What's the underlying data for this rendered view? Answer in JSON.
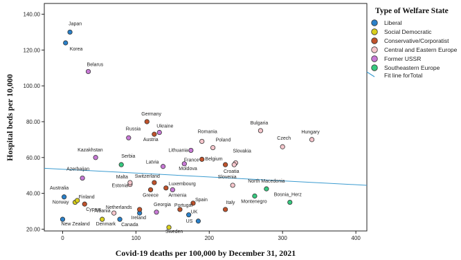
{
  "chart_data": {
    "type": "scatter",
    "xlabel": "Covid-19 deaths per 100,000 by December 31, 2021",
    "ylabel": "Hospital beds per 10,000",
    "xlim": [
      -25,
      415
    ],
    "ylim": [
      19,
      146
    ],
    "x_ticks": [
      0,
      100,
      200,
      300,
      400
    ],
    "y_ticks": [
      20,
      40,
      60,
      80,
      100,
      120,
      140
    ],
    "y_tick_labels": [
      "20.00",
      "40.00",
      "60.00",
      "80.00",
      "100.00",
      "120.00",
      "140.00"
    ],
    "grid": false,
    "legend": {
      "title": "Type of Welfare State",
      "position": "top-right",
      "items": [
        {
          "key": "liberal",
          "label": "Liberal",
          "color": "#2a80c9"
        },
        {
          "key": "socdem",
          "label": "Social Democratic",
          "color": "#d9cf1c"
        },
        {
          "key": "cons",
          "label": "Conservative/Corporatist",
          "color": "#c0522b"
        },
        {
          "key": "cee",
          "label": "Central and Eastern Europe",
          "color": "#f6c6cc"
        },
        {
          "key": "ussr",
          "label": "Former USSR",
          "color": "#c87ad6"
        },
        {
          "key": "see",
          "label": "Southeastern Europe",
          "color": "#36c97f"
        }
      ],
      "fit_label": "Fit line forTotal"
    },
    "fit_line": {
      "x": [
        -25,
        415
      ],
      "y": [
        54,
        44.5
      ],
      "color": "#3a9bd0"
    },
    "series": [
      {
        "key": "liberal",
        "points": [
          {
            "name": "Japan",
            "x": 10,
            "y": 130
          },
          {
            "name": "Korea",
            "x": 4,
            "y": 124
          },
          {
            "name": "Australia",
            "x": 2,
            "y": 38
          },
          {
            "name": "New Zealand",
            "x": 0,
            "y": 25.5
          },
          {
            "name": "Canada",
            "x": 78,
            "y": 25.5
          },
          {
            "name": "Ireland",
            "x": 105,
            "y": 29
          },
          {
            "name": "US",
            "x": 185,
            "y": 24.5
          },
          {
            "name": "UK",
            "x": 172,
            "y": 28
          }
        ]
      },
      {
        "key": "socdem",
        "points": [
          {
            "name": "Norway",
            "x": 17,
            "y": 35
          },
          {
            "name": "Finland",
            "x": 20,
            "y": 36
          },
          {
            "name": "Denmark",
            "x": 54,
            "y": 25.5
          },
          {
            "name": "Sweden",
            "x": 145,
            "y": 21
          }
        ]
      },
      {
        "key": "cons",
        "points": [
          {
            "name": "Germany",
            "x": 115,
            "y": 80
          },
          {
            "name": "Austria",
            "x": 125,
            "y": 73
          },
          {
            "name": "Switzerland",
            "x": 125,
            "y": 46
          },
          {
            "name": "Luxembourg",
            "x": 141,
            "y": 43
          },
          {
            "name": "Netherlands",
            "x": 105,
            "y": 31
          },
          {
            "name": "Spain",
            "x": 178,
            "y": 34.5
          },
          {
            "name": "Italy",
            "x": 222,
            "y": 31
          },
          {
            "name": "France",
            "x": 190,
            "y": 59
          },
          {
            "name": "Belgium",
            "x": 222,
            "y": 56
          },
          {
            "name": "Portugal",
            "x": 160,
            "y": 31
          },
          {
            "name": "Greece",
            "x": 120,
            "y": 42
          },
          {
            "name": "Cyprus",
            "x": 30,
            "y": 34
          }
        ]
      },
      {
        "key": "cee",
        "points": [
          {
            "name": "Czech",
            "x": 300,
            "y": 66
          },
          {
            "name": "Hungary",
            "x": 340,
            "y": 70
          },
          {
            "name": "Bulgaria",
            "x": 270,
            "y": 75
          },
          {
            "name": "Romania",
            "x": 190,
            "y": 69
          },
          {
            "name": "Poland",
            "x": 205,
            "y": 65.5
          },
          {
            "name": "Slovakia",
            "x": 236,
            "y": 57
          },
          {
            "name": "Croatia",
            "x": 234,
            "y": 56
          },
          {
            "name": "Estonia",
            "x": 92,
            "y": 45
          },
          {
            "name": "Malta",
            "x": 92,
            "y": 46
          },
          {
            "name": "Slovenia",
            "x": 232,
            "y": 44.5
          },
          {
            "name": "Albania",
            "x": 70,
            "y": 29
          }
        ]
      },
      {
        "key": "ussr",
        "points": [
          {
            "name": "Belarus",
            "x": 35,
            "y": 108
          },
          {
            "name": "Ukraine",
            "x": 132,
            "y": 74
          },
          {
            "name": "Russia",
            "x": 90,
            "y": 71
          },
          {
            "name": "Kazakhstan",
            "x": 45,
            "y": 60
          },
          {
            "name": "Lithuania",
            "x": 175,
            "y": 64
          },
          {
            "name": "Latvia",
            "x": 137,
            "y": 55
          },
          {
            "name": "Moldova",
            "x": 166,
            "y": 56.5
          },
          {
            "name": "Azerbaijan",
            "x": 27,
            "y": 48.5
          },
          {
            "name": "Armenia",
            "x": 150,
            "y": 42
          },
          {
            "name": "Georgia",
            "x": 128,
            "y": 29.5
          }
        ]
      },
      {
        "key": "see",
        "points": [
          {
            "name": "Serbia",
            "x": 80,
            "y": 56
          },
          {
            "name": "North Macedonia",
            "x": 278,
            "y": 42.5
          },
          {
            "name": "Montenegro",
            "x": 262,
            "y": 38.5
          },
          {
            "name": "Bosnia_Herz",
            "x": 310,
            "y": 35
          }
        ]
      }
    ]
  }
}
